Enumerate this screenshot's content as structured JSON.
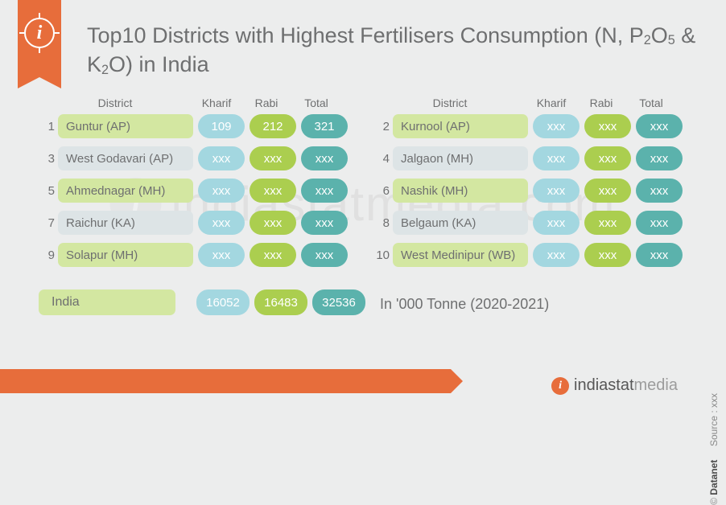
{
  "title_parts": {
    "prefix": "Top10 Districts with Highest Fertilisers Consumption (N, P",
    "sub1": "2",
    "mid1": "O",
    "sub2": "5",
    "mid2": " & K",
    "sub3": "2",
    "suffix": "O) in India"
  },
  "headers": {
    "district": "District",
    "kharif": "Kharif",
    "rabi": "Rabi",
    "total": "Total"
  },
  "rows": [
    {
      "rank": "1",
      "district": "Guntur (AP)",
      "kharif": "109",
      "rabi": "212",
      "total": "321",
      "bg": 0
    },
    {
      "rank": "2",
      "district": "Kurnool (AP)",
      "kharif": "xxx",
      "rabi": "xxx",
      "total": "xxx",
      "bg": 0
    },
    {
      "rank": "3",
      "district": "West Godavari (AP)",
      "kharif": "xxx",
      "rabi": "xxx",
      "total": "xxx",
      "bg": 1
    },
    {
      "rank": "4",
      "district": "Jalgaon (MH)",
      "kharif": "xxx",
      "rabi": "xxx",
      "total": "xxx",
      "bg": 1
    },
    {
      "rank": "5",
      "district": "Ahmednagar (MH)",
      "kharif": "xxx",
      "rabi": "xxx",
      "total": "xxx",
      "bg": 0
    },
    {
      "rank": "6",
      "district": "Nashik (MH)",
      "kharif": "xxx",
      "rabi": "xxx",
      "total": "xxx",
      "bg": 0
    },
    {
      "rank": "7",
      "district": "Raichur (KA)",
      "kharif": "xxx",
      "rabi": "xxx",
      "total": "xxx",
      "bg": 1
    },
    {
      "rank": "8",
      "district": "Belgaum (KA)",
      "kharif": "xxx",
      "rabi": "xxx",
      "total": "xxx",
      "bg": 1
    },
    {
      "rank": "9",
      "district": "Solapur (MH)",
      "kharif": "xxx",
      "rabi": "xxx",
      "total": "xxx",
      "bg": 0
    },
    {
      "rank": "10",
      "district": "West Medinipur (WB)",
      "kharif": "xxx",
      "rabi": "xxx",
      "total": "xxx",
      "bg": 0
    }
  ],
  "india": {
    "label": "India",
    "kharif": "16052",
    "rabi": "16483",
    "total": "32536"
  },
  "note": "In '000 Tonne (2020-2021)",
  "brand": "indiastatmedia",
  "watermark": "indiastatmedia.com",
  "copyright": "Datanet",
  "source_label": "Source : ",
  "source_value": "xxx",
  "colors": {
    "kharif": "#a3d7e0",
    "rabi": "#abce4f",
    "total": "#5bb2ac",
    "accent": "#e76d3b",
    "rowA": "#d3e7a1",
    "rowB": "#dde4e6",
    "page_bg": "#eceded"
  }
}
